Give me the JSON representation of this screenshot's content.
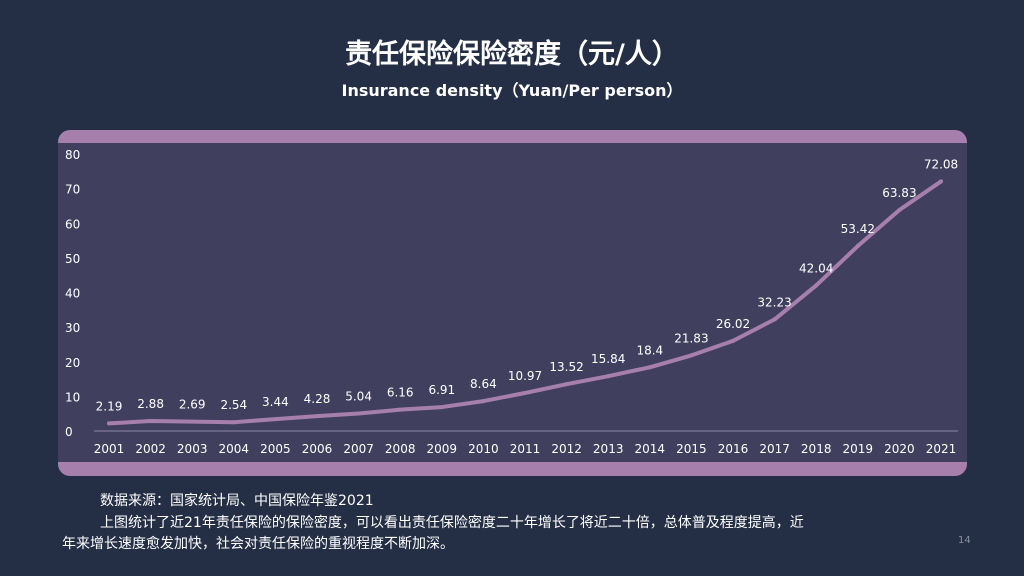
{
  "header": {
    "title": "责任保险保险密度（元/人）",
    "subtitle": "Insurance density（Yuan/Per person）"
  },
  "chart_data": {
    "type": "line",
    "categories": [
      "2001",
      "2002",
      "2003",
      "2004",
      "2005",
      "2006",
      "2007",
      "2008",
      "2009",
      "2010",
      "2011",
      "2012",
      "2013",
      "2014",
      "2015",
      "2016",
      "2017",
      "2018",
      "2019",
      "2020",
      "2021"
    ],
    "values": [
      2.19,
      2.88,
      2.69,
      2.54,
      3.44,
      4.28,
      5.04,
      6.16,
      6.91,
      8.64,
      10.97,
      13.52,
      15.84,
      18.4,
      21.83,
      26.02,
      32.23,
      42.04,
      53.42,
      63.83,
      72.08
    ],
    "ylim": [
      0,
      80
    ],
    "yticks": [
      0,
      10,
      20,
      30,
      40,
      50,
      60,
      70,
      80
    ],
    "grid": false,
    "line_color": "#a77fac"
  },
  "footer": {
    "source": "数据来源：国家统计局、中国保险年鉴2021",
    "para1": "上图统计了近21年责任保险的保险密度，可以看出责任保险密度二十年增长了将近二十倍，总体普及程度提高，近",
    "para2": "年来增长速度愈发加快，社会对责任保险的重视程度不断加深。",
    "page": "14"
  }
}
